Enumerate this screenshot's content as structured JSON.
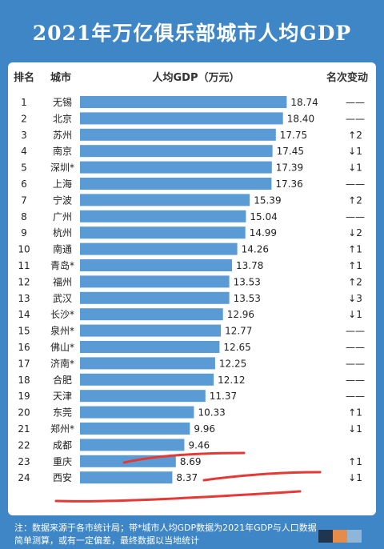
{
  "title": "2021年万亿俱乐部城市人均GDP",
  "headers": {
    "rank": "排名",
    "city": "城市",
    "value": "人均GDP（万元）",
    "change": "名次变动"
  },
  "note": "注：数据来源于各市统计局；带*城市人均GDP数据为2021年GDP与人口数据简单测算，或有一定偏差，最终数据以当地统计",
  "colors": {
    "background": "#3f86c6",
    "bar": "#5b9bd5",
    "panel": "#ffffff",
    "annotation": "#e53935"
  },
  "chart_data": {
    "type": "bar",
    "orientation": "horizontal",
    "title": "2021年万亿俱乐部城市人均GDP",
    "xlabel": "人均GDP（万元）",
    "ylabel": "城市",
    "xlim": [
      0,
      19
    ],
    "rows": [
      {
        "rank": "1",
        "city": "无锡",
        "value": 18.74,
        "label": "18.74",
        "change": "——"
      },
      {
        "rank": "2",
        "city": "北京",
        "value": 18.4,
        "label": "18.40",
        "change": "——"
      },
      {
        "rank": "3",
        "city": "苏州",
        "value": 17.75,
        "label": "17.75",
        "change": "↑2"
      },
      {
        "rank": "4",
        "city": "南京",
        "value": 17.45,
        "label": "17.45",
        "change": "↓1"
      },
      {
        "rank": "5",
        "city": "深圳*",
        "value": 17.39,
        "label": "17.39",
        "change": "↓1"
      },
      {
        "rank": "6",
        "city": "上海",
        "value": 17.36,
        "label": "17.36",
        "change": "——"
      },
      {
        "rank": "7",
        "city": "宁波",
        "value": 15.39,
        "label": "15.39",
        "change": "↑2"
      },
      {
        "rank": "8",
        "city": "广州",
        "value": 15.04,
        "label": "15.04",
        "change": "——"
      },
      {
        "rank": "9",
        "city": "杭州",
        "value": 14.99,
        "label": "14.99",
        "change": "↓2"
      },
      {
        "rank": "10",
        "city": "南通",
        "value": 14.26,
        "label": "14.26",
        "change": "↑1"
      },
      {
        "rank": "11",
        "city": "青岛*",
        "value": 13.78,
        "label": "13.78",
        "change": "↑1"
      },
      {
        "rank": "12",
        "city": "福州",
        "value": 13.53,
        "label": "13.53",
        "change": "↑2"
      },
      {
        "rank": "13",
        "city": "武汉",
        "value": 13.53,
        "label": "13.53",
        "change": "↓3"
      },
      {
        "rank": "14",
        "city": "长沙*",
        "value": 12.96,
        "label": "12.96",
        "change": "↓1"
      },
      {
        "rank": "15",
        "city": "泉州*",
        "value": 12.77,
        "label": "12.77",
        "change": "——"
      },
      {
        "rank": "16",
        "city": "佛山*",
        "value": 12.65,
        "label": "12.65",
        "change": "——"
      },
      {
        "rank": "17",
        "city": "济南*",
        "value": 12.25,
        "label": "12.25",
        "change": "——"
      },
      {
        "rank": "18",
        "city": "合肥",
        "value": 12.12,
        "label": "12.12",
        "change": "——"
      },
      {
        "rank": "19",
        "city": "天津",
        "value": 11.37,
        "label": "11.37",
        "change": "——"
      },
      {
        "rank": "20",
        "city": "东莞",
        "value": 10.33,
        "label": "10.33",
        "change": "↑1"
      },
      {
        "rank": "21",
        "city": "郑州*",
        "value": 9.96,
        "label": "9.96",
        "change": "↓1"
      },
      {
        "rank": "22",
        "city": "成都",
        "value": 9.46,
        "label": "9.46",
        "change": ""
      },
      {
        "rank": "23",
        "city": "重庆",
        "value": 8.69,
        "label": "8.69",
        "change": "↑1"
      },
      {
        "rank": "24",
        "city": "西安",
        "value": 8.37,
        "label": "8.37",
        "change": "↓1"
      }
    ]
  }
}
